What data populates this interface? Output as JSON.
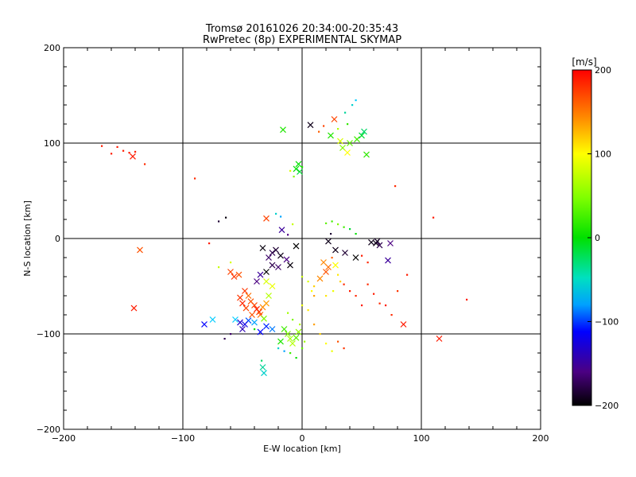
{
  "chart_data": {
    "type": "scatter",
    "title": "Tromsø 20161026 20:34:00-20:35:43",
    "subtitle": "RwPretec (8p) EXPERIMENTAL SKYMAP",
    "xlabel": "E-W location [km]",
    "ylabel": "N-S location [km]",
    "xlim": [
      -200,
      200
    ],
    "ylim": [
      -200,
      200
    ],
    "x_ticks": [
      "−200",
      "−100",
      "0",
      "100",
      "200"
    ],
    "y_ticks": [
      "−200",
      "−100",
      "0",
      "100",
      "200"
    ],
    "grid": true,
    "grid_lines": [
      -100,
      0,
      100
    ],
    "colorbar": {
      "label": "[m/s]",
      "range": [
        -200,
        200
      ],
      "ticks": [
        "200",
        "100",
        "0",
        "−100",
        "−200"
      ],
      "colormap": "rainbow (black-purple-blue-cyan-green-yellow-orange-red)"
    },
    "colors": {
      "minus200": "#000000",
      "minus150": "#4b0082",
      "minus100": "#0000ff",
      "minus50": "#00ccff",
      "zero": "#00e000",
      "plus100": "#ffff00",
      "plus150": "#ff8800",
      "plus200": "#ff0000"
    },
    "points": [
      [
        -168,
        97,
        190,
        "d"
      ],
      [
        -160,
        89,
        190,
        "d"
      ],
      [
        -155,
        96,
        190,
        "d"
      ],
      [
        -150,
        92,
        190,
        "d"
      ],
      [
        -145,
        90,
        190,
        "d"
      ],
      [
        -142,
        86,
        190,
        "x"
      ],
      [
        -140,
        91,
        190,
        "d"
      ],
      [
        -132,
        78,
        185,
        "d"
      ],
      [
        -136,
        -12,
        170,
        "x"
      ],
      [
        -141,
        -73,
        190,
        "x"
      ],
      [
        -90,
        63,
        185,
        "d"
      ],
      [
        -70,
        18,
        -180,
        "d"
      ],
      [
        -64,
        22,
        -195,
        "d"
      ],
      [
        -82,
        -90,
        -100,
        "x"
      ],
      [
        24,
        108,
        10,
        "x"
      ],
      [
        32,
        102,
        80,
        "x"
      ],
      [
        34,
        95,
        40,
        "x"
      ],
      [
        38,
        90,
        100,
        "x"
      ],
      [
        40,
        100,
        30,
        "x"
      ],
      [
        46,
        104,
        20,
        "x"
      ],
      [
        50,
        108,
        -10,
        "x"
      ],
      [
        52,
        112,
        -20,
        "x"
      ],
      [
        54,
        88,
        15,
        "x"
      ],
      [
        -16,
        114,
        10,
        "x"
      ],
      [
        7,
        119,
        -190,
        "x"
      ],
      [
        27,
        125,
        175,
        "x"
      ],
      [
        36,
        132,
        -30,
        "d"
      ],
      [
        42,
        140,
        -40,
        "d"
      ],
      [
        45,
        145,
        -50,
        "d"
      ],
      [
        38,
        120,
        15,
        "d"
      ],
      [
        30,
        115,
        60,
        "d"
      ],
      [
        18,
        118,
        175,
        "d"
      ],
      [
        14,
        112,
        165,
        "d"
      ],
      [
        -3,
        78,
        0,
        "x"
      ],
      [
        -5,
        73,
        0,
        "x"
      ],
      [
        -2,
        70,
        -10,
        "x"
      ],
      [
        -10,
        71,
        80,
        "d"
      ],
      [
        -7,
        65,
        40,
        "d"
      ],
      [
        0,
        75,
        10,
        "d"
      ],
      [
        -30,
        21,
        175,
        "x"
      ],
      [
        -22,
        26,
        -40,
        "d"
      ],
      [
        -18,
        23,
        -60,
        "d"
      ],
      [
        -17,
        9,
        -140,
        "x"
      ],
      [
        -12,
        4,
        -150,
        "d"
      ],
      [
        -8,
        15,
        70,
        "d"
      ],
      [
        -5,
        -8,
        -200,
        "x"
      ],
      [
        22,
        -3,
        -190,
        "x"
      ],
      [
        24,
        5,
        -180,
        "d"
      ],
      [
        20,
        16,
        30,
        "d"
      ],
      [
        25,
        18,
        20,
        "d"
      ],
      [
        30,
        15,
        40,
        "d"
      ],
      [
        35,
        12,
        20,
        "d"
      ],
      [
        40,
        10,
        -10,
        "d"
      ],
      [
        45,
        5,
        0,
        "d"
      ],
      [
        62,
        -5,
        -195,
        "x"
      ],
      [
        63,
        -3,
        -185,
        "x"
      ],
      [
        65,
        -7,
        -170,
        "x"
      ],
      [
        58,
        -4,
        -190,
        "x"
      ],
      [
        74,
        -5,
        -150,
        "x"
      ],
      [
        72,
        -23,
        -140,
        "x"
      ],
      [
        45,
        -20,
        -200,
        "x"
      ],
      [
        36,
        -15,
        -180,
        "x"
      ],
      [
        28,
        -12,
        -190,
        "x"
      ],
      [
        -33,
        -10,
        -195,
        "x"
      ],
      [
        -28,
        -20,
        -160,
        "x"
      ],
      [
        -25,
        -15,
        -170,
        "x"
      ],
      [
        -22,
        -12,
        -180,
        "x"
      ],
      [
        -18,
        -18,
        -190,
        "x"
      ],
      [
        -13,
        -22,
        -150,
        "x"
      ],
      [
        -10,
        -28,
        -195,
        "x"
      ],
      [
        -20,
        -30,
        -160,
        "x"
      ],
      [
        -25,
        -28,
        -170,
        "x"
      ],
      [
        -30,
        -35,
        -200,
        "x"
      ],
      [
        -35,
        -38,
        -140,
        "x"
      ],
      [
        -38,
        -45,
        -150,
        "x"
      ],
      [
        -60,
        -35,
        175,
        "x"
      ],
      [
        -57,
        -40,
        180,
        "x"
      ],
      [
        -53,
        -38,
        170,
        "x"
      ],
      [
        -60,
        -25,
        80,
        "d"
      ],
      [
        -70,
        -30,
        70,
        "d"
      ],
      [
        -48,
        -55,
        180,
        "x"
      ],
      [
        -45,
        -60,
        160,
        "x"
      ],
      [
        -43,
        -66,
        170,
        "x"
      ],
      [
        -40,
        -70,
        175,
        "x"
      ],
      [
        -38,
        -74,
        190,
        "x"
      ],
      [
        -35,
        -80,
        160,
        "x"
      ],
      [
        -33,
        -72,
        150,
        "x"
      ],
      [
        -30,
        -68,
        140,
        "x"
      ],
      [
        -36,
        -77,
        180,
        "x"
      ],
      [
        -42,
        -80,
        170,
        "x"
      ],
      [
        -47,
        -73,
        175,
        "x"
      ],
      [
        -50,
        -68,
        185,
        "x"
      ],
      [
        -52,
        -62,
        180,
        "x"
      ],
      [
        -45,
        -86,
        -80,
        "x"
      ],
      [
        -40,
        -88,
        -60,
        "x"
      ],
      [
        -32,
        -84,
        40,
        "x"
      ],
      [
        -28,
        -60,
        60,
        "x"
      ],
      [
        -25,
        -50,
        90,
        "x"
      ],
      [
        -30,
        -45,
        80,
        "x"
      ],
      [
        -48,
        -90,
        -110,
        "x"
      ],
      [
        -50,
        -95,
        -130,
        "x"
      ],
      [
        -52,
        -88,
        -120,
        "x"
      ],
      [
        -56,
        -85,
        -50,
        "x"
      ],
      [
        -30,
        -92,
        -90,
        "x"
      ],
      [
        -25,
        -95,
        -70,
        "x"
      ],
      [
        -35,
        -98,
        -100,
        "x"
      ],
      [
        -40,
        -95,
        0,
        "d"
      ],
      [
        -33,
        -135,
        -30,
        "x"
      ],
      [
        -32,
        -141,
        -40,
        "x"
      ],
      [
        -34,
        -128,
        -20,
        "d"
      ],
      [
        -12,
        -100,
        40,
        "x"
      ],
      [
        -10,
        -105,
        50,
        "x"
      ],
      [
        -8,
        -110,
        60,
        "x"
      ],
      [
        -5,
        -104,
        30,
        "x"
      ],
      [
        -3,
        -98,
        45,
        "x"
      ],
      [
        -15,
        -95,
        20,
        "x"
      ],
      [
        -18,
        -108,
        10,
        "x"
      ],
      [
        -20,
        -115,
        -40,
        "d"
      ],
      [
        -15,
        -118,
        -60,
        "d"
      ],
      [
        -10,
        -120,
        20,
        "d"
      ],
      [
        -5,
        -125,
        0,
        "d"
      ],
      [
        0,
        -115,
        30,
        "d"
      ],
      [
        2,
        -108,
        50,
        "d"
      ],
      [
        -2,
        -90,
        60,
        "d"
      ],
      [
        -8,
        -85,
        40,
        "d"
      ],
      [
        -12,
        -78,
        50,
        "d"
      ],
      [
        0,
        -40,
        70,
        "d"
      ],
      [
        5,
        -45,
        80,
        "d"
      ],
      [
        10,
        -50,
        120,
        "d"
      ],
      [
        15,
        -42,
        150,
        "x"
      ],
      [
        20,
        -35,
        170,
        "x"
      ],
      [
        22,
        -30,
        160,
        "x"
      ],
      [
        18,
        -25,
        150,
        "x"
      ],
      [
        25,
        -20,
        165,
        "d"
      ],
      [
        28,
        -28,
        100,
        "x"
      ],
      [
        30,
        -38,
        110,
        "d"
      ],
      [
        32,
        -45,
        120,
        "d"
      ],
      [
        26,
        -55,
        90,
        "d"
      ],
      [
        20,
        -60,
        110,
        "d"
      ],
      [
        10,
        -60,
        140,
        "d"
      ],
      [
        8,
        -55,
        100,
        "d"
      ],
      [
        35,
        -48,
        185,
        "d"
      ],
      [
        40,
        -55,
        190,
        "d"
      ],
      [
        45,
        -60,
        185,
        "d"
      ],
      [
        50,
        -70,
        190,
        "d"
      ],
      [
        55,
        -48,
        185,
        "d"
      ],
      [
        60,
        -58,
        190,
        "d"
      ],
      [
        65,
        -68,
        185,
        "d"
      ],
      [
        70,
        -70,
        190,
        "d"
      ],
      [
        75,
        -80,
        185,
        "d"
      ],
      [
        80,
        -55,
        180,
        "d"
      ],
      [
        88,
        -38,
        190,
        "d"
      ],
      [
        85,
        -90,
        190,
        "x"
      ],
      [
        115,
        -105,
        190,
        "x"
      ],
      [
        138,
        -64,
        190,
        "d"
      ],
      [
        110,
        22,
        190,
        "d"
      ],
      [
        78,
        55,
        185,
        "d"
      ],
      [
        55,
        -25,
        185,
        "d"
      ],
      [
        50,
        -18,
        190,
        "d"
      ],
      [
        30,
        -108,
        170,
        "d"
      ],
      [
        35,
        -115,
        180,
        "d"
      ],
      [
        25,
        -118,
        90,
        "d"
      ],
      [
        20,
        -110,
        100,
        "d"
      ],
      [
        15,
        -100,
        120,
        "d"
      ],
      [
        10,
        -90,
        140,
        "d"
      ],
      [
        5,
        -75,
        110,
        "d"
      ],
      [
        0,
        -70,
        90,
        "d"
      ],
      [
        -75,
        -85,
        -50,
        "x"
      ],
      [
        -65,
        -105,
        -170,
        "d"
      ],
      [
        -60,
        -100,
        -160,
        "d"
      ],
      [
        -78,
        -5,
        190,
        "d"
      ]
    ]
  }
}
